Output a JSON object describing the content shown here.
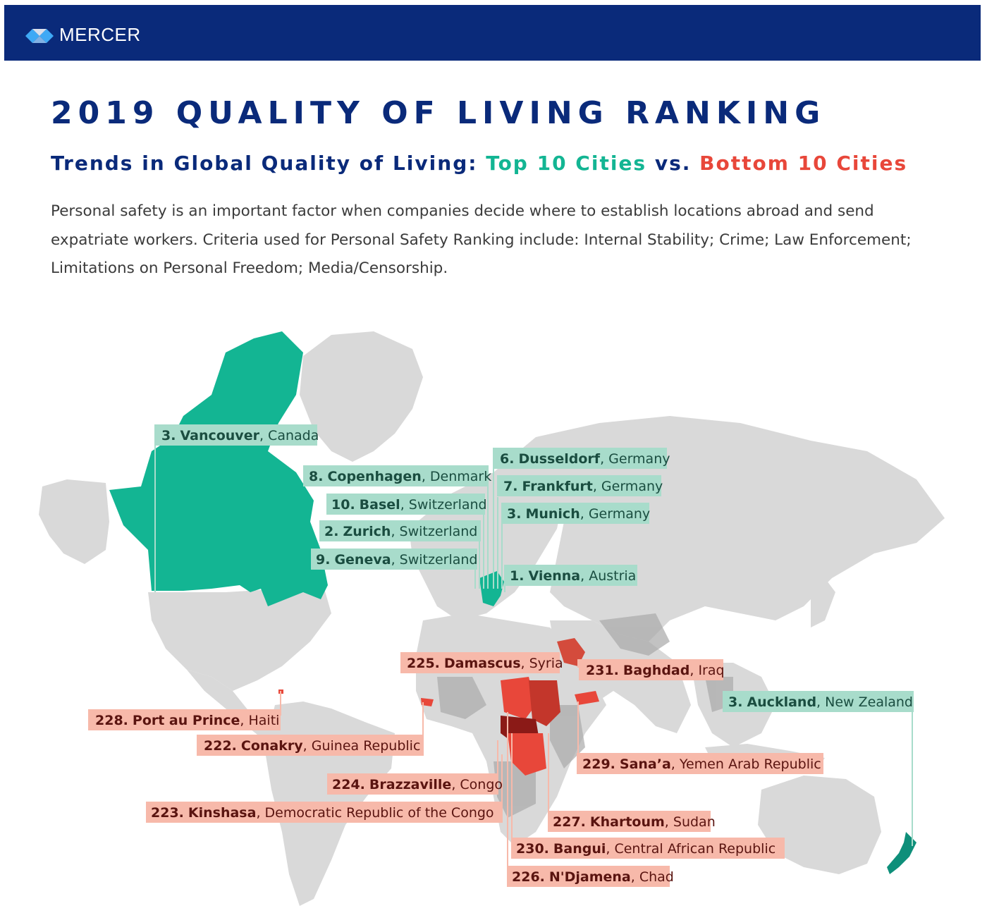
{
  "brand": {
    "name": "MERCER",
    "icon": "mercer-logo-icon"
  },
  "title": "2019 QUALITY OF LIVING RANKING",
  "subtitle": {
    "lead": "Trends in Global Quality of Living: ",
    "top": "Top 10 Cities",
    "vs": " vs. ",
    "bottom": "Bottom 10 Cities"
  },
  "description": "Personal safety is an important factor when companies decide where to establish locations abroad and send expatriate workers. Criteria used for Personal Safety Ranking include: Internal Stability; Crime; Law Enforcement; Limitations on Personal Freedom; Media/Censorship.",
  "colors": {
    "brand_navy": "#0a2a7a",
    "top_green": "#13b593",
    "top_label_bg": "#a8dccb",
    "bottom_red": "#e8473a",
    "bottom_label_bg": "#f7b9aa",
    "land_gray": "#d9d9d9"
  },
  "top_cities": [
    {
      "rank": "3.",
      "city": "Vancouver",
      "country": "Canada"
    },
    {
      "rank": "6.",
      "city": "Dusseldorf",
      "country": "Germany"
    },
    {
      "rank": "8.",
      "city": "Copenhagen",
      "country": "Denmark"
    },
    {
      "rank": "7.",
      "city": "Frankfurt",
      "country": "Germany"
    },
    {
      "rank": "10.",
      "city": "Basel",
      "country": "Switzerland"
    },
    {
      "rank": "3.",
      "city": "Munich",
      "country": "Germany"
    },
    {
      "rank": "2.",
      "city": "Zurich",
      "country": "Switzerland"
    },
    {
      "rank": "9.",
      "city": "Geneva",
      "country": "Switzerland"
    },
    {
      "rank": "1.",
      "city": "Vienna",
      "country": "Austria"
    },
    {
      "rank": "3.",
      "city": "Auckland",
      "country": "New Zealand"
    }
  ],
  "bottom_cities": [
    {
      "rank": "225.",
      "city": "Damascus",
      "country": "Syria"
    },
    {
      "rank": "231.",
      "city": "Baghdad",
      "country": "Iraq"
    },
    {
      "rank": "228.",
      "city": "Port au Prince",
      "country": "Haiti"
    },
    {
      "rank": "222.",
      "city": "Conakry",
      "country": "Guinea Republic"
    },
    {
      "rank": "229.",
      "city": "Sana’a",
      "country": "Yemen Arab Republic"
    },
    {
      "rank": "224.",
      "city": "Brazzaville",
      "country": "Congo"
    },
    {
      "rank": "223.",
      "city": "Kinshasa",
      "country": "Democratic Republic of the Congo"
    },
    {
      "rank": "227.",
      "city": "Khartoum",
      "country": "Sudan"
    },
    {
      "rank": "230.",
      "city": "Bangui",
      "country": "Central African Republic"
    },
    {
      "rank": "226.",
      "city": "N'Djamena",
      "country": "Chad"
    }
  ]
}
